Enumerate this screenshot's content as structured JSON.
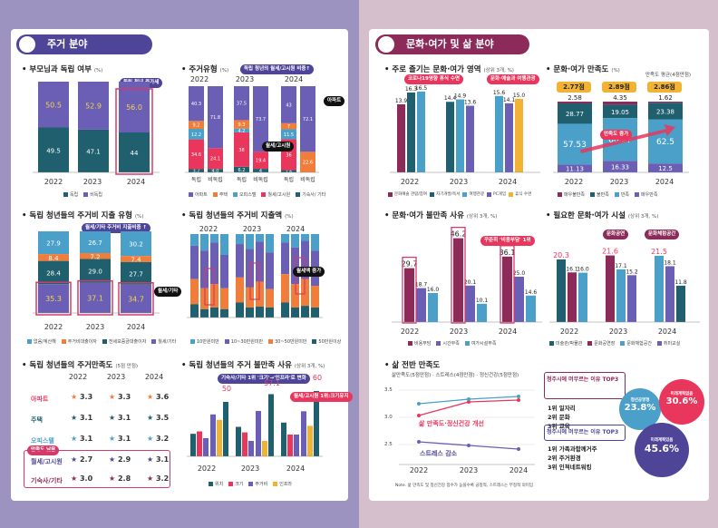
{
  "left_title": "주거 분야",
  "right_title": "문화·여가 및 삶 분야",
  "s1": {
    "title": "부모님과 독립 여부",
    "unit": "(%)",
    "chip": "독립 청년 증가세",
    "years": [
      "2022",
      "2023",
      "2024"
    ],
    "independent": [
      "50.5",
      "52.9",
      "56.0"
    ],
    "dependent": [
      "49.5",
      "47.1",
      "44"
    ],
    "legend": [
      "독립",
      "비독립"
    ]
  },
  "s2": {
    "title": "주거유형",
    "unit": "(%)",
    "chip": "독립 청년의 월세/고시원 비중↑",
    "years": [
      "2022",
      "2023",
      "2024"
    ],
    "cats": [
      "비독립",
      "독립"
    ],
    "callout1": "아파트",
    "callout2": "월세/고시원",
    "bars": [
      [
        "40.3",
        "9.2",
        "12.2",
        "34.6",
        "3.7"
      ],
      [
        "71.8",
        "24.1",
        "4.0"
      ],
      [
        "37.5",
        "9.3",
        "4.2",
        "38",
        "6.2"
      ],
      [
        "73.7",
        "19.4",
        "4"
      ],
      [
        "43",
        "7",
        "11.5",
        "36",
        "2.6"
      ],
      [
        "72.1",
        "22.6"
      ]
    ],
    "legend": [
      "아파트",
      "주택",
      "오피스텔",
      "월세/고시원",
      "기숙사/ 기타"
    ]
  },
  "s3": {
    "title": "독립 청년들의 주거비 지출 유형",
    "unit": "(%)",
    "chip": "월세/기타 주거비 지출비중 ↑",
    "callout": "월세/기타",
    "years": [
      "2022",
      "2023",
      "2024"
    ],
    "bars": [
      [
        "27.9",
        "8.4",
        "28.4",
        "35.3"
      ],
      [
        "26.7",
        "7.2",
        "29.0",
        "37.1"
      ],
      [
        "30.2",
        "7.4",
        "27.7",
        "34.7"
      ]
    ],
    "legend": [
      "없음/계산해",
      "주거비대출이자",
      "전세보증금대출이자",
      "월세/기타"
    ]
  },
  "s4": {
    "title": "독립 청년들의 주거비 지출액",
    "unit": "(%)",
    "callout": "월세액 증가",
    "years": [
      "2022",
      "2023",
      "2024"
    ],
    "legend": [
      "10만원미만",
      "10~30만원미만",
      "30~50만원미만",
      "50만원이상"
    ]
  },
  "s5": {
    "title": "독립 청년들의 주거만족도",
    "unit": "(5점 만점)",
    "years": [
      "2022",
      "2023",
      "2024"
    ],
    "rows": [
      "아파트",
      "주택",
      "오피스텔",
      "월세/고시원",
      "기숙사/기타"
    ],
    "values": [
      [
        "3.3",
        "3.3",
        "3.6"
      ],
      [
        "3.1",
        "3.1",
        "3.5"
      ],
      [
        "3.1",
        "3.1",
        "3.2"
      ],
      [
        "2.7",
        "2.9",
        "3.1"
      ],
      [
        "3.0",
        "2.8",
        "3.2"
      ]
    ],
    "badge": "만족도 낮음"
  },
  "s6": {
    "title": "독립 청년들의 주거 불만족 사유",
    "unit": "(상위 3개, %)",
    "chip": "기숙사/기타 1위 '크기'→'인프라'로 변화",
    "years": [
      "2022",
      "2023",
      "2024"
    ],
    "annot": "월세/고시원 1위:크기유지",
    "legend": [
      "위치",
      "크기",
      "주거비",
      "인프라"
    ],
    "tops": [
      "50",
      "57.1",
      "60"
    ]
  },
  "r1": {
    "title": "주로 즐기는 문화·여가 영역",
    "unit": "(상위 3개, %)",
    "chip1": "코로나19영향 휴식 수면",
    "chip2": "문화·예술과 여행관광",
    "years": [
      "2022",
      "2023",
      "2024"
    ],
    "values": [
      [
        "13.9",
        "16.3",
        "16.5"
      ],
      [
        "14.4",
        "14.9",
        "13.6"
      ],
      [
        "15.6",
        "14.1",
        "15.0"
      ]
    ],
    "legend": [
      "문화예술 관람/참여",
      "자기개발/독서",
      "여행관광",
      "PC게임",
      "휴식 수면"
    ]
  },
  "r2": {
    "title": "문화·여가 만족도",
    "unit": "(%)",
    "years": [
      "2022",
      "2023",
      "2024"
    ],
    "avg_label": "만족도 평균(4점만점)",
    "avg": [
      "2.77점",
      "2.89점",
      "2.86점"
    ],
    "chip": "만족도 증가",
    "bars": [
      [
        "2.58",
        "28.77",
        "57.53",
        "11.13"
      ],
      [
        "4.35",
        "19.05",
        "60.27",
        "16.33"
      ],
      [
        "1.62",
        "23.38",
        "62.5",
        "12.5"
      ]
    ],
    "legend": [
      "매우불만족",
      "불만족",
      "만족",
      "매우만족"
    ]
  },
  "r3": {
    "title": "문화·여가 불만족 사유",
    "unit": "(상위 3개, %)",
    "chip": "꾸준히 '비용부담' 1위",
    "years": [
      "2022",
      "2023",
      "2024"
    ],
    "values": [
      [
        "29.7",
        "18.7",
        "16.0"
      ],
      [
        "46.2",
        "20.1",
        "10.1"
      ],
      [
        "36.1",
        "25.0",
        "14.6"
      ]
    ],
    "legend": [
      "비용부담",
      "시간부족",
      "여가시설부족"
    ]
  },
  "r4": {
    "title": "필요한 문화·여가 시설",
    "unit": "(상위 3개, %)",
    "chip1": "문화공연",
    "chip2": "문화체험공간",
    "years": [
      "2022",
      "2023",
      "2024"
    ],
    "values": [
      [
        "20.3",
        "16.1",
        "16.0"
      ],
      [
        "21.6",
        "17.1",
        "15.2"
      ],
      [
        "21.5",
        "18.1",
        "11.8"
      ]
    ],
    "legend": [
      "미술관/박물관",
      "문화공연장",
      "문화체험공간",
      "취미교실"
    ]
  },
  "r5": {
    "title": "삶 전반 만족도",
    "legend": [
      "삶만족도(5점만점)",
      "스트레스(4점만점)",
      "정신건강(5점만점)"
    ],
    "years": [
      "2022",
      "2023",
      "2024"
    ],
    "ticks": [
      "3.5",
      "3.0",
      "2.5"
    ],
    "label1": "삶 만족도·정신건강 개선",
    "label2": "스트레스 감소",
    "top1": "청주시에 머무르는 이유 TOP3",
    "list1": [
      "1위 일자리",
      "2위 문화",
      "3위 교육"
    ],
    "top2": "청주시에 머무르는 이유 TOP3",
    "list2": [
      "1위 가족과함께거주",
      "2위 주거환경",
      "3위 인적네트워킹"
    ],
    "donut1": "23.8%",
    "donut2": "30.6%",
    "donut3": "45.6%",
    "d1lab": "청년공영형",
    "d2lab": "미래계획없음",
    "d3lab": "미래계획있음",
    "note": "Note. 삶 만족도 및 정신건강 점수가 높을수록 긍정적, 스트레스는 부정적 의미임"
  }
}
